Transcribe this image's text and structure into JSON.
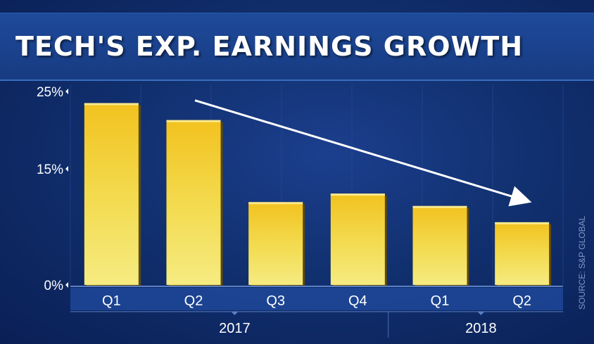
{
  "chart_data": {
    "type": "bar",
    "title": "TECH'S EXP. EARNINGS GROWTH",
    "categories": [
      "Q1",
      "Q2",
      "Q3",
      "Q4",
      "Q1",
      "Q2"
    ],
    "groups": [
      {
        "label": "2017",
        "count": 4
      },
      {
        "label": "2018",
        "count": 2
      }
    ],
    "values": [
      23.5,
      21.3,
      10.7,
      11.8,
      10.2,
      8.1
    ],
    "yticks": [
      {
        "value": 0,
        "label": "0%"
      },
      {
        "value": 15,
        "label": "15%"
      },
      {
        "value": 25,
        "label": "25%"
      }
    ],
    "ylim": [
      0,
      25
    ],
    "annotation": "downward trend arrow",
    "bar_color": "#f0cf2c",
    "background": "#11306f"
  },
  "source": "SOURCE: S&P GLOBAL"
}
